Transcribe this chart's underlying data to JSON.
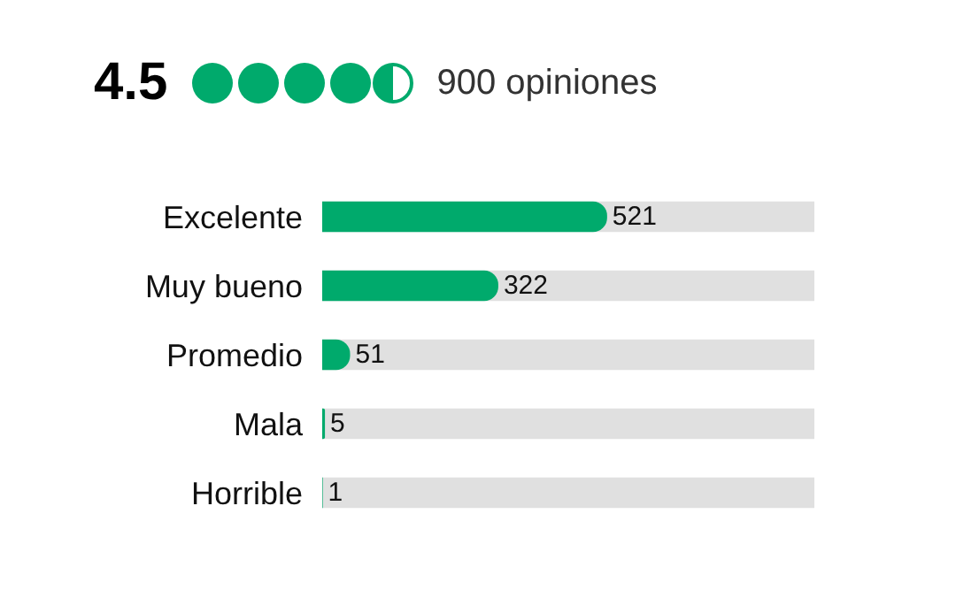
{
  "chart_data": {
    "type": "bar",
    "orientation": "horizontal",
    "title": "4.5",
    "subtitle": "900 opiniones",
    "categories": [
      "Excelente",
      "Muy bueno",
      "Promedio",
      "Mala",
      "Horrible"
    ],
    "values": [
      521,
      322,
      51,
      5,
      1
    ],
    "color": "#00aa6c",
    "tick_labels": "y",
    "data_labels": true
  }
}
